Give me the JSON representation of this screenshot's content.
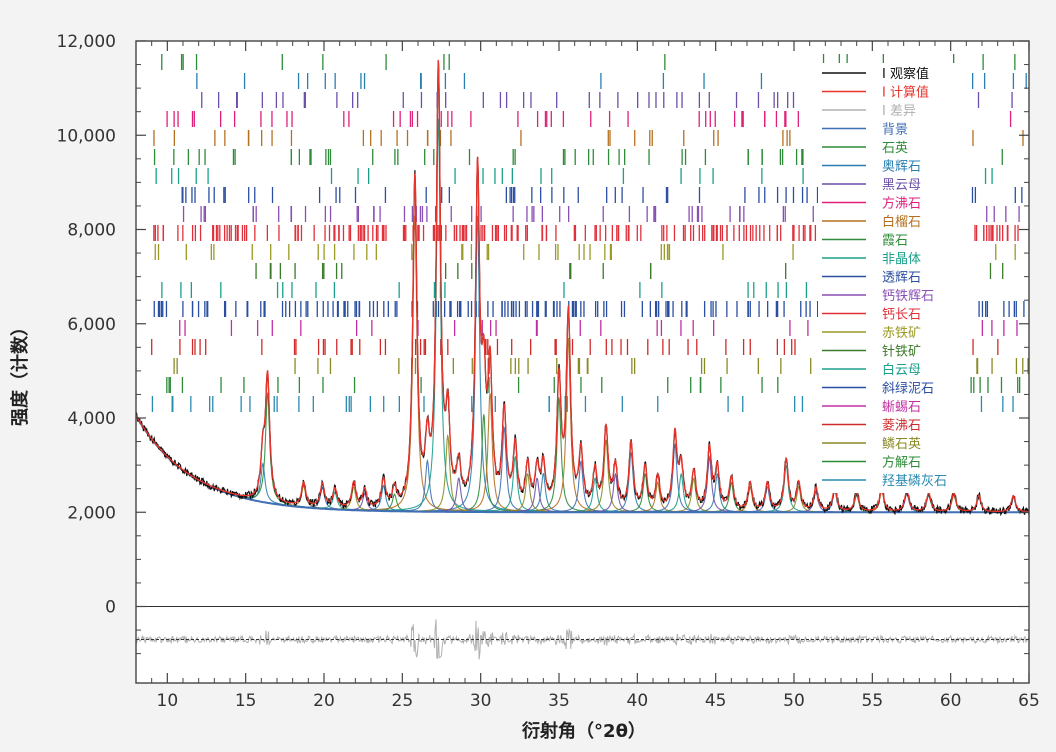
{
  "chart_data": {
    "type": "line",
    "title": "",
    "xlabel": "衍射角（°2θ）",
    "ylabel": "强度（计数）",
    "xlim": [
      8,
      65
    ],
    "ylim": [
      -1300,
      12000
    ],
    "x_ticks": [
      "10",
      "15",
      "20",
      "25",
      "30",
      "35",
      "40",
      "45",
      "50",
      "55",
      "60",
      "65"
    ],
    "y_ticks": [
      "0",
      "2,000",
      "4,000",
      "6,000",
      "8,000",
      "10,000",
      "12,000"
    ],
    "series": [
      {
        "name": "I 观察值",
        "color": "#111111"
      },
      {
        "name": "I 计算值",
        "color": "#e8342a"
      },
      {
        "name": "I 差异",
        "color": "#b0b0b0"
      },
      {
        "name": "背景",
        "color": "#3f6fb5"
      }
    ],
    "phases": [
      {
        "name": "石英",
        "color": "#2e8b3a"
      },
      {
        "name": "奥辉石",
        "color": "#2a7fb0"
      },
      {
        "name": "黑云母",
        "color": "#6b4fa8"
      },
      {
        "name": "方沸石",
        "color": "#e0207a"
      },
      {
        "name": "白榴石",
        "color": "#b5701f"
      },
      {
        "name": "霞石",
        "color": "#2e8b3a"
      },
      {
        "name": "非晶体",
        "color": "#1b9f8a"
      },
      {
        "name": "透辉石",
        "color": "#2c4fa0"
      },
      {
        "name": "钙铁辉石",
        "color": "#8a4fb5"
      },
      {
        "name": "钙长石",
        "color": "#e0303a"
      },
      {
        "name": "赤铁矿",
        "color": "#9a9a25"
      },
      {
        "name": "针铁矿",
        "color": "#3a7a2a"
      },
      {
        "name": "白云母",
        "color": "#1b9f8a"
      },
      {
        "name": "斜绿泥石",
        "color": "#2a4fa0"
      },
      {
        "name": "蜥蜴石",
        "color": "#c030a0"
      },
      {
        "name": "菱沸石",
        "color": "#d02a2a"
      },
      {
        "name": "鳞石英",
        "color": "#8a8a25"
      },
      {
        "name": "方解石",
        "color": "#2e8b3a"
      },
      {
        "name": "羟基磷灰石",
        "color": "#2a8ab0"
      }
    ],
    "peaks": [
      [
        16.1,
        900
      ],
      [
        16.4,
        2600
      ],
      [
        18.7,
        500
      ],
      [
        19.9,
        500
      ],
      [
        20.7,
        400
      ],
      [
        21.9,
        550
      ],
      [
        22.6,
        400
      ],
      [
        23.8,
        600
      ],
      [
        24.5,
        400
      ],
      [
        25.8,
        7000
      ],
      [
        26.6,
        1200
      ],
      [
        27.3,
        9300
      ],
      [
        27.9,
        1800
      ],
      [
        28.6,
        800
      ],
      [
        29.8,
        7000
      ],
      [
        30.2,
        2300
      ],
      [
        30.6,
        2800
      ],
      [
        31.5,
        2000
      ],
      [
        32.2,
        1300
      ],
      [
        33.0,
        900
      ],
      [
        33.6,
        800
      ],
      [
        34.0,
        900
      ],
      [
        35.0,
        2700
      ],
      [
        35.6,
        4100
      ],
      [
        36.4,
        1200
      ],
      [
        37.3,
        800
      ],
      [
        38.0,
        1700
      ],
      [
        38.6,
        900
      ],
      [
        39.6,
        1400
      ],
      [
        40.5,
        900
      ],
      [
        41.3,
        700
      ],
      [
        42.4,
        1600
      ],
      [
        42.8,
        900
      ],
      [
        43.6,
        800
      ],
      [
        44.6,
        1300
      ],
      [
        45.1,
        900
      ],
      [
        46.0,
        700
      ],
      [
        47.2,
        600
      ],
      [
        48.3,
        600
      ],
      [
        49.5,
        1100
      ],
      [
        50.3,
        600
      ],
      [
        51.4,
        500
      ],
      [
        52.6,
        500
      ],
      [
        54.0,
        400
      ],
      [
        55.6,
        500
      ],
      [
        57.2,
        450
      ],
      [
        58.6,
        400
      ],
      [
        60.2,
        400
      ],
      [
        61.8,
        350
      ],
      [
        64.0,
        350
      ]
    ]
  }
}
